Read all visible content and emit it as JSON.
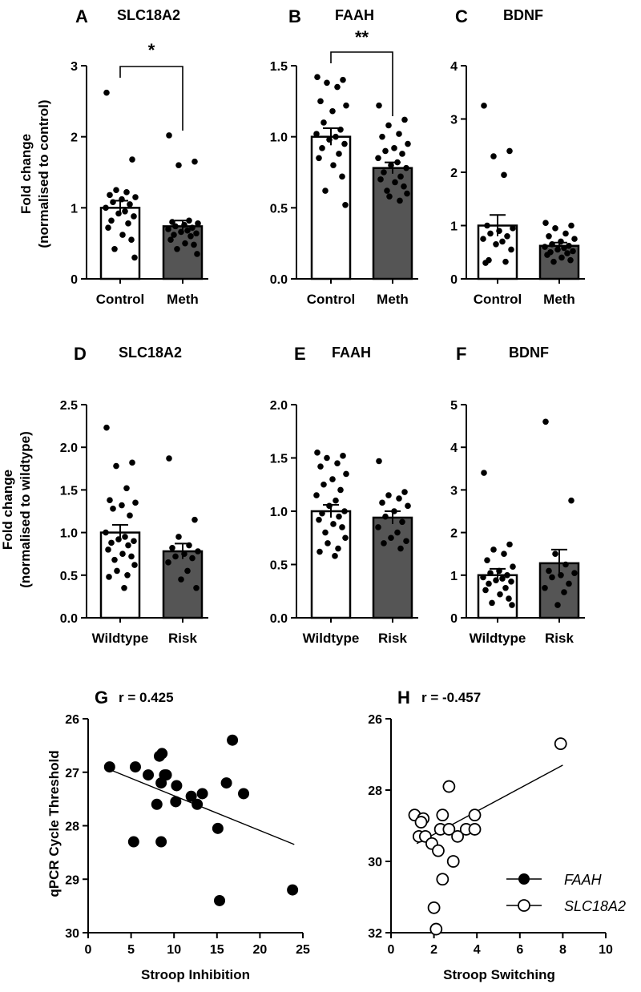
{
  "figure": {
    "colors": {
      "black": "#000000",
      "meth_fill": "#555555",
      "white": "#ffffff"
    },
    "ylabel_top": [
      "Fold change",
      "(normalised to control)"
    ],
    "ylabel_mid": [
      "Fold change",
      "(normalised to wildtype)"
    ],
    "ylabel_bottom": "qPCR Cycle Threshold"
  },
  "chart_data": [
    {
      "type": "bar",
      "panel": "A",
      "title": "SLC18A2",
      "categories": [
        "Control",
        "Meth"
      ],
      "values": [
        1.0,
        0.74
      ],
      "sem": [
        0.1,
        0.08
      ],
      "ylim": [
        0,
        3
      ],
      "yticks": [
        0,
        1,
        2,
        3
      ],
      "yticklabels": [
        "0",
        "1",
        "2",
        "3"
      ],
      "significance": "*",
      "points": [
        [
          2.62,
          1.68,
          1.25,
          1.22,
          1.18,
          1.15,
          1.12,
          1.08,
          1.05,
          1.0,
          0.95,
          0.92,
          0.88,
          0.82,
          0.78,
          0.72,
          0.62,
          0.55,
          0.42,
          0.3
        ],
        [
          2.02,
          1.65,
          1.6,
          0.82,
          0.8,
          0.78,
          0.76,
          0.74,
          0.72,
          0.7,
          0.68,
          0.66,
          0.64,
          0.62,
          0.6,
          0.55,
          0.5,
          0.48,
          0.42,
          0.35
        ]
      ]
    },
    {
      "type": "bar",
      "panel": "B",
      "title": "FAAH",
      "categories": [
        "Control",
        "Meth"
      ],
      "values": [
        1.0,
        0.78
      ],
      "sem": [
        0.06,
        0.04
      ],
      "ylim": [
        0,
        1.5
      ],
      "yticks": [
        0,
        0.5,
        1.0,
        1.5
      ],
      "yticklabels": [
        "0.0",
        "0.5",
        "1.0",
        "1.5"
      ],
      "significance": "**",
      "points": [
        [
          1.42,
          1.4,
          1.38,
          1.35,
          1.25,
          1.22,
          1.18,
          1.1,
          1.05,
          1.02,
          1.0,
          0.98,
          0.95,
          0.92,
          0.88,
          0.85,
          0.8,
          0.72,
          0.62,
          0.52
        ],
        [
          1.22,
          1.12,
          1.08,
          1.02,
          1.0,
          0.95,
          0.92,
          0.9,
          0.88,
          0.85,
          0.82,
          0.8,
          0.78,
          0.75,
          0.72,
          0.7,
          0.68,
          0.65,
          0.62,
          0.6,
          0.58,
          0.55
        ]
      ]
    },
    {
      "type": "bar",
      "panel": "C",
      "title": "BDNF",
      "categories": [
        "Control",
        "Meth"
      ],
      "values": [
        1.0,
        0.62
      ],
      "sem": [
        0.2,
        0.06
      ],
      "ylim": [
        0,
        4
      ],
      "yticks": [
        0,
        1,
        2,
        3,
        4
      ],
      "yticklabels": [
        "0",
        "1",
        "2",
        "3",
        "4"
      ],
      "significance": "",
      "points": [
        [
          3.25,
          2.4,
          2.3,
          1.95,
          1.0,
          0.95,
          0.9,
          0.85,
          0.8,
          0.75,
          0.7,
          0.65,
          0.55,
          0.35,
          0.32,
          0.3
        ],
        [
          1.05,
          1.0,
          0.95,
          0.85,
          0.8,
          0.75,
          0.7,
          0.65,
          0.62,
          0.6,
          0.58,
          0.55,
          0.52,
          0.5,
          0.48,
          0.45,
          0.4,
          0.35,
          0.32
        ]
      ]
    },
    {
      "type": "bar",
      "panel": "D",
      "title": "SLC18A2",
      "categories": [
        "Wildtype",
        "Risk"
      ],
      "values": [
        1.0,
        0.78
      ],
      "sem": [
        0.09,
        0.09
      ],
      "ylim": [
        0,
        2.5
      ],
      "yticks": [
        0,
        0.5,
        1.0,
        1.5,
        2.0,
        2.5
      ],
      "yticklabels": [
        "0.0",
        "0.5",
        "1.0",
        "1.5",
        "2.0",
        "2.5"
      ],
      "significance": "",
      "points": [
        [
          2.23,
          1.82,
          1.78,
          1.52,
          1.38,
          1.35,
          1.32,
          1.28,
          1.2,
          1.0,
          0.95,
          0.92,
          0.9,
          0.88,
          0.85,
          0.8,
          0.75,
          0.72,
          0.68,
          0.62,
          0.55,
          0.5,
          0.48,
          0.35
        ],
        [
          1.87,
          1.15,
          0.95,
          0.85,
          0.82,
          0.78,
          0.75,
          0.72,
          0.7,
          0.65,
          0.55,
          0.45,
          0.35
        ]
      ]
    },
    {
      "type": "bar",
      "panel": "E",
      "title": "FAAH",
      "categories": [
        "Wildtype",
        "Risk"
      ],
      "values": [
        1.0,
        0.94
      ],
      "sem": [
        0.06,
        0.06
      ],
      "ylim": [
        0,
        2.0
      ],
      "yticks": [
        0,
        0.5,
        1.0,
        1.5,
        2.0
      ],
      "yticklabels": [
        "0.0",
        "0.5",
        "1.0",
        "1.5",
        "2.0"
      ],
      "significance": "",
      "points": [
        [
          1.55,
          1.52,
          1.5,
          1.45,
          1.42,
          1.35,
          1.3,
          1.25,
          1.2,
          1.15,
          1.1,
          1.05,
          1.0,
          0.98,
          0.95,
          0.92,
          0.88,
          0.85,
          0.8,
          0.75,
          0.7,
          0.65,
          0.62,
          0.58
        ],
        [
          1.47,
          1.18,
          1.15,
          1.12,
          1.08,
          1.05,
          1.0,
          0.95,
          0.9,
          0.85,
          0.8,
          0.75,
          0.72,
          0.7,
          0.65
        ]
      ]
    },
    {
      "type": "bar",
      "panel": "F",
      "title": "BDNF",
      "categories": [
        "Wildtype",
        "Risk"
      ],
      "values": [
        1.0,
        1.28
      ],
      "sem": [
        0.15,
        0.32
      ],
      "ylim": [
        0,
        5
      ],
      "yticks": [
        0,
        1,
        2,
        3,
        4,
        5
      ],
      "yticklabels": [
        "0",
        "1",
        "2",
        "3",
        "4",
        "5"
      ],
      "significance": "",
      "points": [
        [
          3.4,
          1.72,
          1.6,
          1.5,
          1.35,
          1.2,
          1.1,
          1.05,
          1.0,
          0.95,
          0.92,
          0.88,
          0.85,
          0.8,
          0.7,
          0.65,
          0.55,
          0.45,
          0.35,
          0.3
        ],
        [
          4.6,
          2.75,
          1.5,
          1.25,
          1.1,
          1.05,
          1.0,
          0.95,
          0.8,
          0.7,
          0.6,
          0.3
        ]
      ]
    },
    {
      "type": "scatter",
      "panel": "G",
      "annotation": "r = 0.425",
      "xlabel": "Stroop Inhibition",
      "ylabel": "qPCR Cycle Threshold",
      "xlim": [
        0,
        25
      ],
      "ylim": [
        30,
        26
      ],
      "y_inverted": true,
      "xticks": [
        0,
        5,
        10,
        15,
        20,
        25
      ],
      "yticks": [
        26,
        27,
        28,
        29,
        30
      ],
      "series": [
        {
          "name": "FAAH",
          "marker": "filled-circle",
          "x": [
            2.5,
            5.5,
            7,
            8.3,
            8.6,
            8.9,
            8.5,
            9.1,
            10.3,
            8,
            12,
            13.3,
            10.2,
            12.7,
            16.8,
            18.1,
            16.1,
            15.1,
            5.3,
            8.5,
            23.8,
            15.3
          ],
          "y": [
            26.9,
            26.9,
            27.05,
            26.7,
            26.65,
            27.05,
            27.2,
            27.05,
            27.25,
            27.6,
            27.45,
            27.4,
            27.55,
            27.6,
            26.4,
            27.4,
            27.2,
            28.05,
            28.3,
            28.3,
            29.2,
            29.4
          ]
        }
      ],
      "fit_line": {
        "x": [
          2.5,
          24
        ],
        "y": [
          26.95,
          28.35
        ]
      }
    },
    {
      "type": "scatter",
      "panel": "H",
      "annotation": "r = -0.457",
      "xlabel": "Stroop Switching",
      "xlim": [
        0,
        10
      ],
      "ylim": [
        32,
        26
      ],
      "y_inverted": true,
      "xticks": [
        0,
        2,
        4,
        6,
        8,
        10
      ],
      "yticks": [
        26,
        28,
        30,
        32
      ],
      "series": [
        {
          "name": "SLC18A2",
          "marker": "open-circle",
          "x": [
            7.9,
            2.7,
            3.9,
            1.1,
            1.5,
            1.4,
            2.4,
            1.3,
            1.6,
            1.9,
            2.3,
            2.7,
            3.1,
            3.5,
            3.9,
            2.2,
            2.9,
            2.4,
            2.0,
            2.1
          ],
          "y": [
            26.7,
            27.9,
            28.7,
            28.7,
            28.8,
            28.9,
            28.7,
            29.3,
            29.3,
            29.5,
            29.1,
            29.1,
            29.3,
            29.1,
            29.1,
            29.7,
            30.0,
            30.5,
            31.3,
            31.9
          ]
        }
      ],
      "fit_line": {
        "x": [
          1.2,
          8
        ],
        "y": [
          29.5,
          27.3
        ]
      }
    }
  ],
  "legend": {
    "items": [
      {
        "label": "FAAH",
        "marker": "filled-circle"
      },
      {
        "label": "SLC18A2",
        "marker": "open-circle"
      }
    ]
  }
}
